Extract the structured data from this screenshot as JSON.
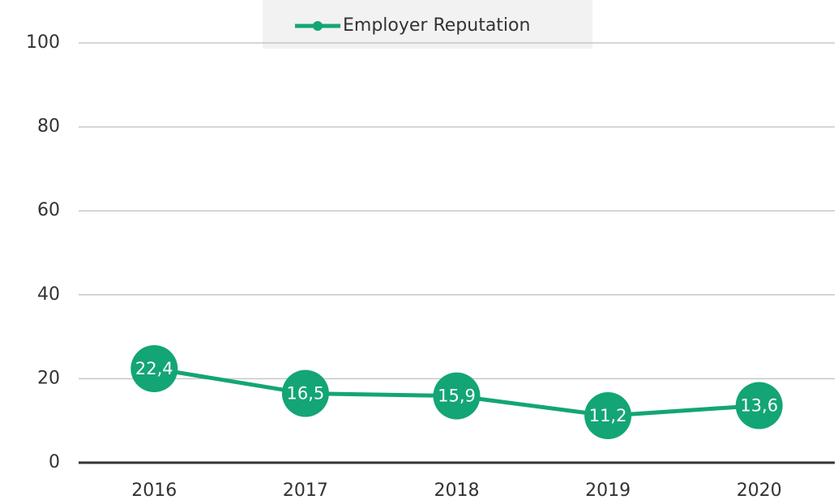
{
  "chart_data": {
    "type": "line",
    "categories": [
      "2016",
      "2017",
      "2018",
      "2019",
      "2020"
    ],
    "series": [
      {
        "name": "Employer Reputation",
        "color": "#13a575",
        "values": [
          22.4,
          16.5,
          15.9,
          11.2,
          13.6
        ],
        "value_labels": [
          "22,4",
          "16,5",
          "15,9",
          "11,2",
          "13,6"
        ]
      }
    ],
    "ylim": [
      0,
      100
    ],
    "yticks": [
      0,
      20,
      40,
      60,
      80,
      100
    ],
    "grid": true,
    "legend": "top"
  }
}
